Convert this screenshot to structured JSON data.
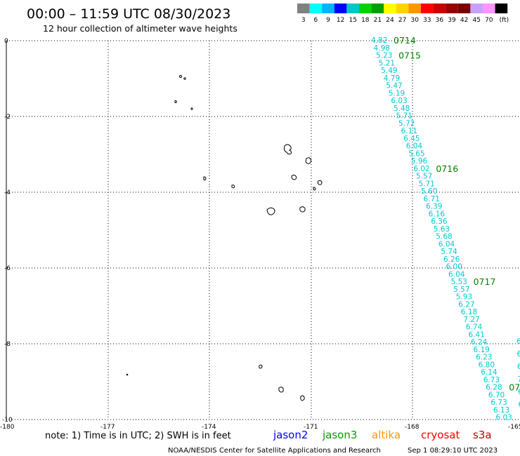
{
  "header": {
    "title": "00:00 – 11:59 UTC 08/30/2023",
    "subtitle": "12 hour collection of altimeter wave heights"
  },
  "legend": {
    "colors": [
      "#808080",
      "#00ffff",
      "#00b4ff",
      "#0000ff",
      "#00c8c8",
      "#00d200",
      "#00a000",
      "#ffff00",
      "#ffd200",
      "#ff9600",
      "#ff0000",
      "#c80000",
      "#960000",
      "#780000",
      "#c8a0ff",
      "#ff96ff",
      "#000000"
    ],
    "labels": [
      "3",
      "6",
      "9",
      "12",
      "15",
      "18",
      "21",
      "24",
      "27",
      "30",
      "33",
      "36",
      "39",
      "42",
      "45",
      "70",
      "(ft)"
    ]
  },
  "map": {
    "lon_range": [
      -180,
      -165
    ],
    "lat_range": [
      -10,
      0
    ],
    "x_ticks": [
      "-180",
      "-177",
      "-174",
      "-171",
      "-168",
      "-165"
    ],
    "y_ticks": [
      "0",
      "-2",
      "-4",
      "-6",
      "-8",
      "-10"
    ],
    "grid": true
  },
  "track": {
    "satellite": "jason3",
    "swh_values": [
      "4.82",
      "4.98",
      "5.23",
      "5.21",
      "5.49",
      "4.79",
      "5.47",
      "5.19",
      "6.03",
      "5.48",
      "5.71",
      "5.72",
      "6.11",
      "6.45",
      "6.04",
      "5.65",
      "5.96",
      "6.02",
      "5.57",
      "5.71",
      "5.60",
      "6.71",
      "6.39",
      "6.16",
      "6.36",
      "5.63",
      "5.68",
      "6.04",
      "5.74",
      "6.26",
      "6.00",
      "6.04",
      "5.53",
      "5.57",
      "5.93",
      "6.27",
      "6.18",
      "7.27",
      "6.74",
      "6.41",
      "6.24",
      "6.19",
      "6.23",
      "6.80",
      "6.14",
      "6.73",
      "6.28",
      "6.70",
      "6.73",
      "6.13",
      "6.03"
    ],
    "time_labels": [
      {
        "text": "0714",
        "index": 0
      },
      {
        "text": "0715",
        "index": 2
      },
      {
        "text": "0716",
        "index": 17
      },
      {
        "text": "0717",
        "index": 32
      },
      {
        "text": "07",
        "index": 46
      }
    ],
    "partial_values": [
      "6",
      "6",
      "6",
      "7",
      "6",
      "6"
    ]
  },
  "footer": {
    "note": "note: 1) Time is in UTC; 2) SWH is in feet",
    "satellites": [
      {
        "name": "jason2",
        "color": "#0000ff"
      },
      {
        "name": "jason3",
        "color": "#00a000"
      },
      {
        "name": "altika",
        "color": "#ff9600"
      },
      {
        "name": "cryosat",
        "color": "#ff0000"
      },
      {
        "name": "s3a",
        "color": "#c80000"
      }
    ],
    "credit": "NOAA/NESDIS Center for Satellite Applications and Research",
    "timestamp": "Sep  1 08:29:10 UTC 2023"
  }
}
